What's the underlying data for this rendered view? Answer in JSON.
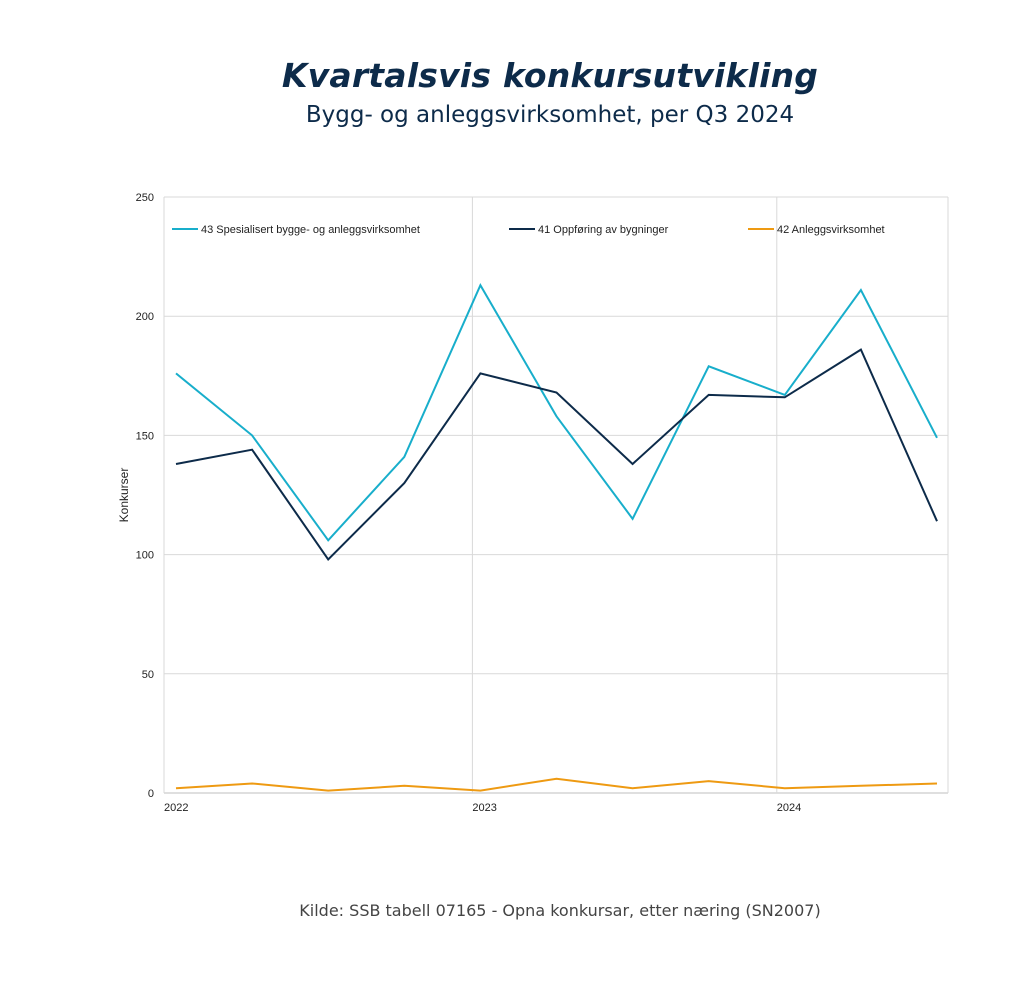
{
  "chart_data": {
    "type": "line",
    "title": "Kvartalsvis konkursutvikling",
    "subtitle": "Bygg- og anleggsvirksomhet, per Q3 2024",
    "ylabel": "Konkurser",
    "xlabel": "",
    "ylim": [
      0,
      250
    ],
    "yticks": [
      "0",
      "50",
      "100",
      "150",
      "200",
      "250"
    ],
    "xticks": [
      "2022",
      "2023",
      "2024"
    ],
    "x": [
      "2022Q1",
      "2022Q2",
      "2022Q3",
      "2022Q4",
      "2023Q1",
      "2023Q2",
      "2023Q3",
      "2023Q4",
      "2024Q1",
      "2024Q2",
      "2024Q3"
    ],
    "grid": true,
    "legend_position": "top",
    "series": [
      {
        "name": "43 Spesialisert bygge- og anleggsvirksomhet",
        "color": "#18aecb",
        "values": [
          176,
          150,
          106,
          141,
          213,
          158,
          115,
          179,
          167,
          211,
          149
        ]
      },
      {
        "name": "41 Oppføring av bygninger",
        "color": "#0d2b4a",
        "values": [
          138,
          144,
          98,
          130,
          176,
          168,
          138,
          167,
          166,
          186,
          114
        ]
      },
      {
        "name": "42 Anleggsvirksomhet",
        "color": "#ee9a12",
        "values": [
          2,
          4,
          1,
          3,
          1,
          6,
          2,
          5,
          2,
          3,
          4
        ]
      }
    ]
  },
  "source": "Kilde: SSB tabell 07165 - Opna konkursar, etter næring (SN2007)"
}
